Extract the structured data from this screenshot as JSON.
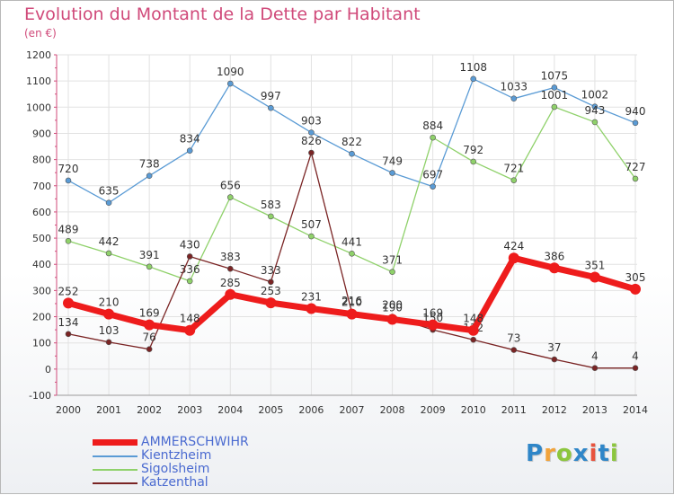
{
  "title": "Evolution du Montant de la Dette par Habitant",
  "subtitle": "(en €)",
  "logo": {
    "letters": [
      "P",
      "r",
      "o",
      "x",
      "i",
      "t",
      "i"
    ],
    "colors": [
      "#2f86c8",
      "#f2a33a",
      "#8cc63e",
      "#2f86c8",
      "#e8533e",
      "#2f86c8",
      "#8cc63e"
    ]
  },
  "chart_data": {
    "type": "line",
    "categories": [
      "2000",
      "2001",
      "2002",
      "2003",
      "2004",
      "2005",
      "2006",
      "2007",
      "2008",
      "2009",
      "2010",
      "2011",
      "2012",
      "2013",
      "2014"
    ],
    "ylim": [
      -100,
      1200
    ],
    "yticks": [
      "-100",
      "0",
      "100",
      "200",
      "300",
      "400",
      "500",
      "600",
      "700",
      "800",
      "900",
      "1000",
      "1100",
      "1200"
    ],
    "grid": true,
    "legend_position": "bottom-left",
    "series": [
      {
        "name": "AMMERSCHWIHR",
        "color": "#ee1c1c",
        "values": [
          252,
          210,
          169,
          148,
          285,
          253,
          231,
          210,
          190,
          169,
          148,
          424,
          386,
          351,
          305
        ]
      },
      {
        "name": "Kientzheim",
        "color": "#5a9bd5",
        "values": [
          720,
          635,
          738,
          834,
          1090,
          997,
          903,
          822,
          749,
          697,
          1108,
          1033,
          1075,
          1002,
          940
        ]
      },
      {
        "name": "Sigolsheim",
        "color": "#8fd16a",
        "values": [
          489,
          442,
          391,
          336,
          656,
          583,
          507,
          441,
          371,
          884,
          792,
          721,
          1001,
          943,
          727
        ]
      },
      {
        "name": "Katzenthal",
        "color": "#7a2424",
        "values": [
          134,
          103,
          76,
          430,
          383,
          333,
          826,
          216,
          200,
          150,
          112,
          73,
          37,
          4,
          4
        ]
      }
    ]
  }
}
